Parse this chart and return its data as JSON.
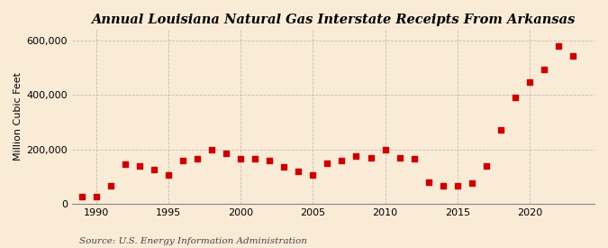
{
  "title": "Annual Louisiana Natural Gas Interstate Receipts From Arkansas",
  "ylabel": "Million Cubic Feet",
  "source": "Source: U.S. Energy Information Administration",
  "background_color": "#faebd7",
  "plot_bg_color": "#faebd7",
  "marker_color": "#cc0000",
  "years": [
    1989,
    1990,
    1991,
    1992,
    1993,
    1994,
    1995,
    1996,
    1997,
    1998,
    1999,
    2000,
    2001,
    2002,
    2003,
    2004,
    2005,
    2006,
    2007,
    2008,
    2009,
    2010,
    2011,
    2012,
    2013,
    2014,
    2015,
    2016,
    2017,
    2018,
    2019,
    2020,
    2021,
    2022,
    2023
  ],
  "values": [
    25000,
    25000,
    65000,
    145000,
    140000,
    125000,
    105000,
    158000,
    165000,
    200000,
    185000,
    165000,
    165000,
    160000,
    135000,
    120000,
    105000,
    148000,
    160000,
    175000,
    170000,
    200000,
    170000,
    165000,
    80000,
    65000,
    65000,
    75000,
    140000,
    270000,
    390000,
    448000,
    495000,
    580000,
    545000
  ],
  "ylim": [
    0,
    640000
  ],
  "yticks": [
    0,
    200000,
    400000,
    600000
  ],
  "ytick_labels": [
    "0",
    "200,000",
    "400,000",
    "600,000"
  ],
  "xticks": [
    1990,
    1995,
    2000,
    2005,
    2010,
    2015,
    2020
  ],
  "xlim": [
    1988.3,
    2024.5
  ],
  "grid_color": "#aaaaaa",
  "title_fontsize": 10.5,
  "axis_fontsize": 8,
  "source_fontsize": 7.5
}
